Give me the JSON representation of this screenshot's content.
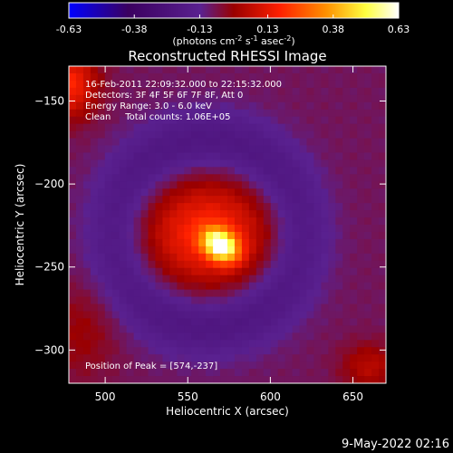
{
  "chart_data": {
    "type": "heatmap",
    "title": "Reconstructed RHESSI Image",
    "xlabel": "Heliocentric X (arcsec)",
    "ylabel": "Heliocentric Y (arcsec)",
    "xlim": [
      478,
      670
    ],
    "ylim": [
      -320,
      -129
    ],
    "xticks": [
      500,
      550,
      600,
      650
    ],
    "yticks": [
      -150,
      -200,
      -250,
      -300
    ],
    "colorbar": {
      "label": "(photons cm",
      "label_sup1": "-2",
      "label_mid1": " s",
      "label_sup2": "-1",
      "label_mid2": " asec",
      "label_sup3": "-2",
      "label_end": ")",
      "min": -0.63,
      "max": 0.63,
      "ticks": [
        "-0.63",
        "-0.38",
        "-0.13",
        "0.13",
        "0.38",
        "0.63"
      ],
      "colors": [
        "#0000ff",
        "#3b0060",
        "#5a2190",
        "#9a0000",
        "#ff2000",
        "#ff9000",
        "#ffff40",
        "#ffffff"
      ]
    },
    "info_lines": [
      "16-Feb-2011 22:09:32.000 to 22:15:32.000",
      "Detectors: 3F 4F 5F 6F 7F 8F, Att 0",
      "Energy Range: 3.0 - 6.0 keV",
      "Clean     Total counts: 1.06E+05"
    ],
    "peak_label": "Position of Peak = [574,-237]",
    "peak": {
      "x": 574,
      "y": -237,
      "value": 0.63
    },
    "sources": [
      {
        "x": 570,
        "y": -237,
        "peak": 0.58,
        "sigma_x": 8,
        "sigma_y": 6,
        "rotation_deg": -35
      },
      {
        "x": 562,
        "y": -230,
        "peak": 0.26,
        "sigma_x": 30,
        "sigma_y": 24,
        "rotation_deg": 0
      },
      {
        "x": 478,
        "y": -140,
        "peak": 0.26,
        "sigma_x": 12,
        "sigma_y": 14,
        "rotation_deg": 0
      },
      {
        "x": 485,
        "y": -290,
        "peak": 0.08,
        "sigma_x": 16,
        "sigma_y": 20,
        "rotation_deg": 0
      },
      {
        "x": 660,
        "y": -310,
        "peak": 0.13,
        "sigma_x": 12,
        "sigma_y": 10,
        "rotation_deg": 0
      }
    ],
    "ring": {
      "x": 562,
      "y": -230,
      "radius": 55,
      "width": 14,
      "depth": -0.15
    },
    "background": -0.08
  },
  "footer": {
    "timestamp": "9-May-2022 02:16"
  }
}
